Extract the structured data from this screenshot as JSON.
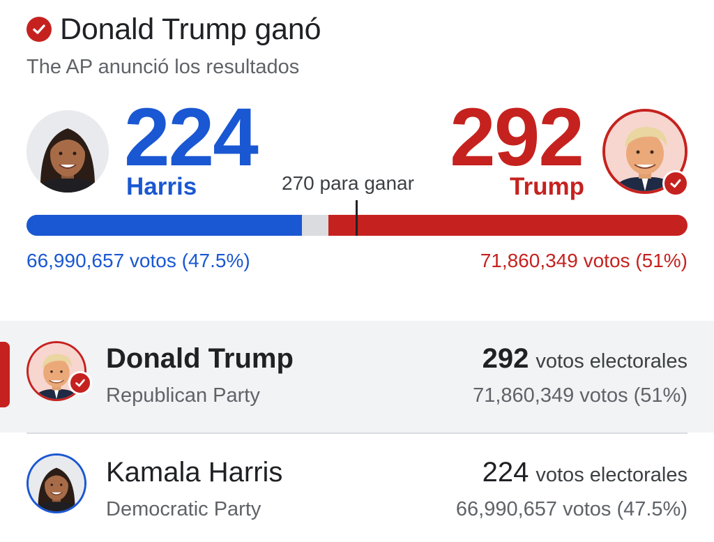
{
  "header": {
    "title": "Donald Trump ganó",
    "subtitle": "The AP anunció los resultados"
  },
  "summary": {
    "to_win_label": "270 para ganar",
    "to_win_value": 270,
    "total_electoral": 538,
    "harris": {
      "electoral_votes": "224",
      "short_name": "Harris",
      "popular": "66,990,657 votos (47.5%)",
      "color": "#1a57d2"
    },
    "trump": {
      "electoral_votes": "292",
      "short_name": "Trump",
      "popular": "71,860,349 votos (51%)",
      "color": "#c5221f",
      "winner": true
    }
  },
  "results": [
    {
      "name": "Donald Trump",
      "party": "Republican Party",
      "electoral_votes": "292",
      "ev_label": "votos electorales",
      "popular": "71,860,349 votos (51%)",
      "winner": true,
      "icon": "trump-portrait"
    },
    {
      "name": "Kamala Harris",
      "party": "Democratic Party",
      "electoral_votes": "224",
      "ev_label": "votos electorales",
      "popular": "66,990,657 votos (47.5%)",
      "winner": false,
      "icon": "harris-portrait"
    }
  ],
  "icons": {
    "winner": "check-circle-icon"
  }
}
